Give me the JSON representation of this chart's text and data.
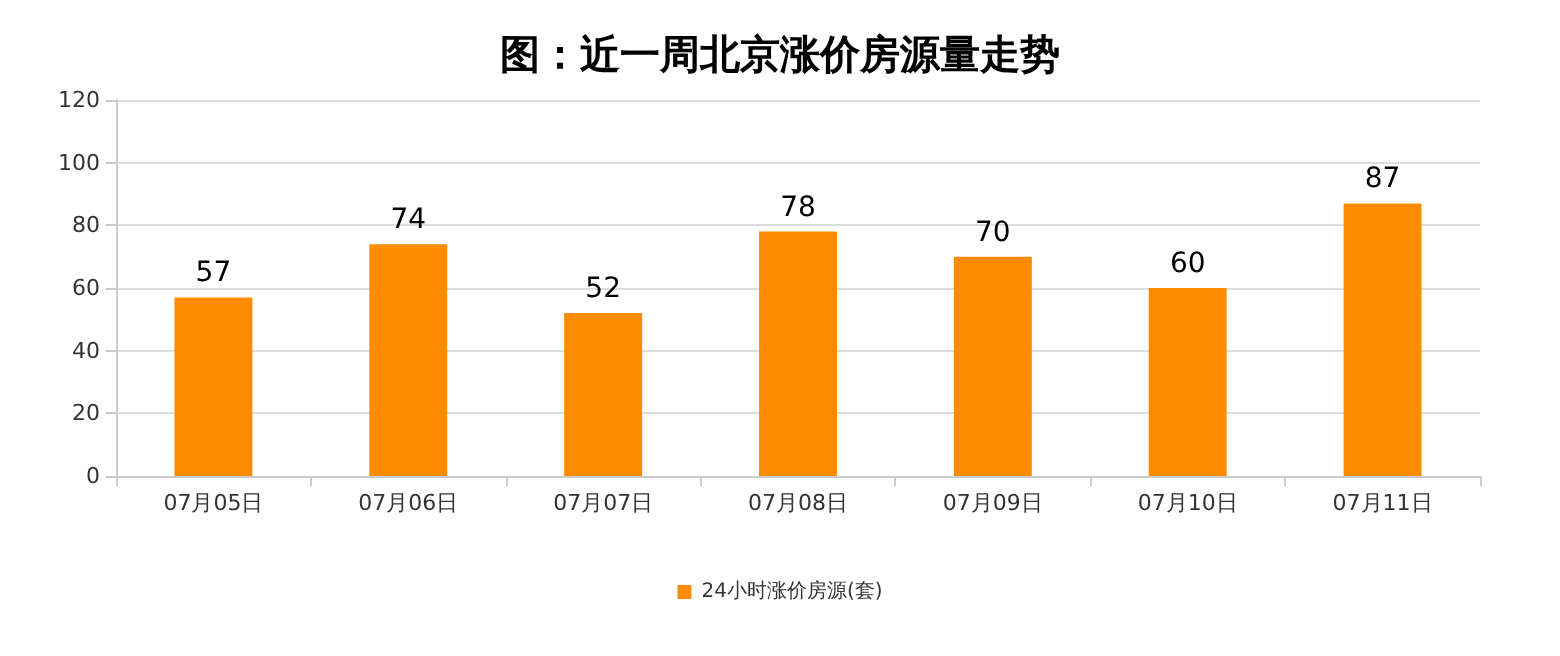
{
  "chart_data": {
    "type": "bar",
    "title": "图：近一周北京涨价房源量走势",
    "categories": [
      "07月05日",
      "07月06日",
      "07月07日",
      "07月08日",
      "07月09日",
      "07月10日",
      "07月11日"
    ],
    "series": [
      {
        "name": "24小时涨价房源(套)",
        "color": "#ff8c00",
        "values": [
          57,
          74,
          52,
          78,
          70,
          60,
          87
        ]
      }
    ],
    "ylim": [
      0,
      120
    ],
    "yticks": [
      0,
      20,
      40,
      60,
      80,
      100,
      120
    ],
    "grid": "y",
    "legend": "bottom",
    "data_labels": true
  }
}
